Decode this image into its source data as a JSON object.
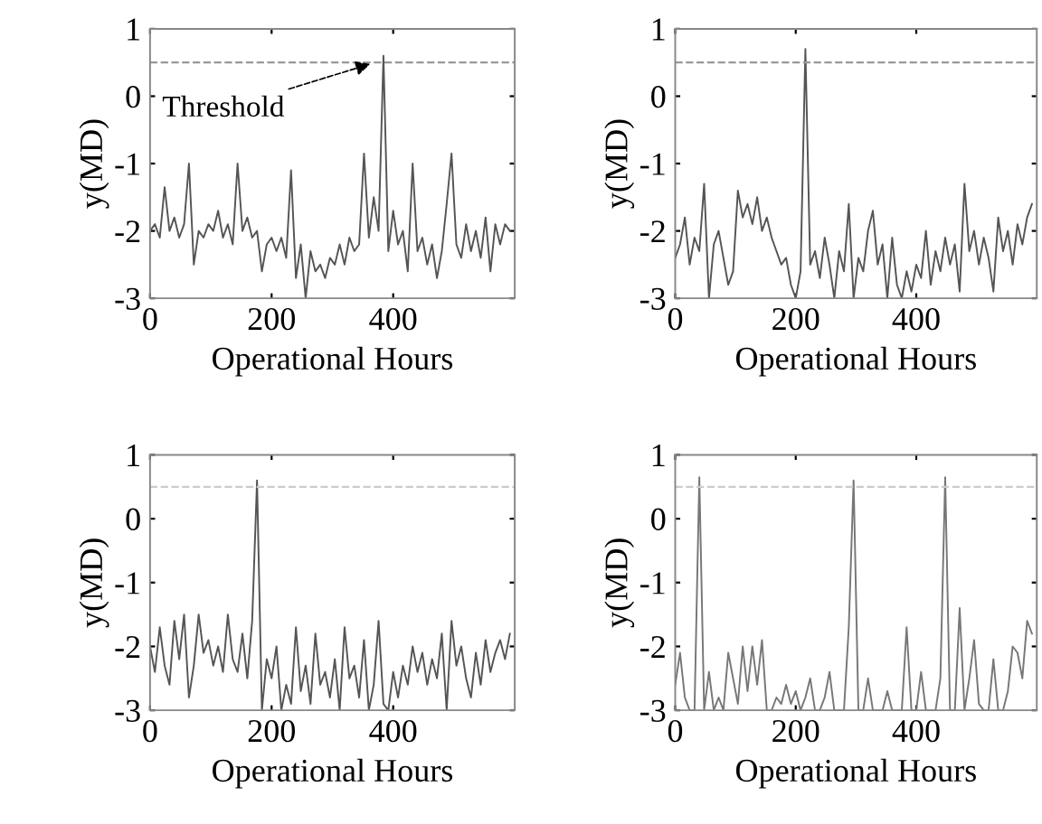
{
  "chart_data": [
    {
      "type": "line",
      "xlabel": "Operational Hours",
      "ylabel": "y(MD)",
      "xlim": [
        0,
        600
      ],
      "xticks": [
        0,
        200,
        400
      ],
      "ylim": [
        -3,
        1
      ],
      "yticks": [
        -3,
        -2,
        -1,
        0,
        1
      ],
      "grid": false,
      "legend": false,
      "marker": "none",
      "line_style": "solid",
      "ref_lines": [
        {
          "axis": "y",
          "value": 0.5,
          "label": null,
          "color": "#999999",
          "line_style": "dashed"
        }
      ],
      "annotations": [
        {
          "text": "Threshold",
          "x": 370,
          "y": 0.5
        }
      ],
      "x": [
        0,
        8,
        16,
        24,
        32,
        40,
        48,
        56,
        64,
        72,
        80,
        88,
        96,
        104,
        112,
        120,
        128,
        136,
        144,
        152,
        160,
        168,
        176,
        184,
        192,
        200,
        208,
        216,
        224,
        232,
        240,
        248,
        256,
        264,
        272,
        280,
        288,
        296,
        304,
        312,
        320,
        328,
        336,
        344,
        352,
        360,
        368,
        376,
        384,
        392,
        400,
        408,
        416,
        424,
        432,
        440,
        448,
        456,
        464,
        472,
        480,
        488,
        496,
        504,
        512,
        520,
        528,
        536,
        544,
        552,
        560,
        568,
        576,
        584,
        592
      ],
      "series": [
        {
          "color": "#555555",
          "values": [
            -2.0,
            -1.9,
            -2.1,
            -1.35,
            -2.0,
            -1.8,
            -2.1,
            -1.9,
            -1.0,
            -2.5,
            -2.0,
            -2.1,
            -1.9,
            -2.0,
            -1.7,
            -2.1,
            -1.9,
            -2.2,
            -1.0,
            -2.0,
            -1.8,
            -2.1,
            -2.0,
            -2.6,
            -2.2,
            -2.1,
            -2.3,
            -2.1,
            -2.4,
            -1.1,
            -2.7,
            -2.2,
            -3.0,
            -2.3,
            -2.6,
            -2.5,
            -2.7,
            -2.4,
            -2.5,
            -2.2,
            -2.5,
            -2.1,
            -2.3,
            -2.2,
            -0.85,
            -2.1,
            -1.5,
            -2.0,
            0.6,
            -2.3,
            -1.7,
            -2.2,
            -2.0,
            -2.6,
            -1.0,
            -2.3,
            -2.1,
            -2.5,
            -2.2,
            -2.7,
            -2.3,
            -1.6,
            -0.85,
            -2.2,
            -2.4,
            -1.9,
            -2.3,
            -2.0,
            -2.4,
            -1.8,
            -2.6,
            -1.9,
            -2.2,
            -1.9,
            -2.0
          ]
        }
      ]
    },
    {
      "type": "line",
      "xlabel": "Operational Hours",
      "ylabel": "y(MD)",
      "xlim": [
        0,
        600
      ],
      "xticks": [
        0,
        200,
        400
      ],
      "ylim": [
        -3,
        1
      ],
      "yticks": [
        -3,
        -2,
        -1,
        0,
        1
      ],
      "grid": false,
      "legend": false,
      "marker": "none",
      "line_style": "solid",
      "ref_lines": [
        {
          "axis": "y",
          "value": 0.5,
          "label": null,
          "color": "#999999",
          "line_style": "dashed"
        }
      ],
      "x": [
        0,
        8,
        16,
        24,
        32,
        40,
        48,
        56,
        64,
        72,
        80,
        88,
        96,
        104,
        112,
        120,
        128,
        136,
        144,
        152,
        160,
        168,
        176,
        184,
        192,
        200,
        208,
        216,
        224,
        232,
        240,
        248,
        256,
        264,
        272,
        280,
        288,
        296,
        304,
        312,
        320,
        328,
        336,
        344,
        352,
        360,
        368,
        376,
        384,
        392,
        400,
        408,
        416,
        424,
        432,
        440,
        448,
        456,
        464,
        472,
        480,
        488,
        496,
        504,
        512,
        520,
        528,
        536,
        544,
        552,
        560,
        568,
        576,
        584,
        592
      ],
      "series": [
        {
          "color": "#555555",
          "values": [
            -2.4,
            -2.2,
            -1.8,
            -2.5,
            -2.1,
            -2.3,
            -1.3,
            -3.0,
            -2.2,
            -2.0,
            -2.4,
            -2.8,
            -2.6,
            -1.4,
            -1.8,
            -1.6,
            -1.9,
            -1.5,
            -2.0,
            -1.8,
            -2.1,
            -2.3,
            -2.5,
            -2.4,
            -2.8,
            -3.0,
            -2.6,
            0.7,
            -2.5,
            -2.3,
            -2.7,
            -2.1,
            -2.5,
            -3.0,
            -2.3,
            -2.6,
            -1.6,
            -3.0,
            -2.4,
            -2.6,
            -2.0,
            -1.7,
            -2.5,
            -2.2,
            -3.0,
            -2.1,
            -2.8,
            -3.0,
            -2.6,
            -2.9,
            -2.5,
            -2.7,
            -2.0,
            -2.8,
            -2.3,
            -2.6,
            -2.1,
            -2.5,
            -2.2,
            -2.9,
            -1.3,
            -2.3,
            -2.0,
            -2.5,
            -2.1,
            -2.4,
            -2.9,
            -1.8,
            -2.3,
            -2.0,
            -2.5,
            -1.9,
            -2.2,
            -1.8,
            -1.6
          ]
        }
      ]
    },
    {
      "type": "line",
      "xlabel": "Operational Hours",
      "ylabel": "y(MD)",
      "xlim": [
        0,
        600
      ],
      "xticks": [
        0,
        200,
        400
      ],
      "ylim": [
        -3,
        1
      ],
      "yticks": [
        -3,
        -2,
        -1,
        0,
        1
      ],
      "grid": false,
      "legend": false,
      "marker": "none",
      "line_style": "solid",
      "ref_lines": [
        {
          "axis": "y",
          "value": 0.5,
          "label": null,
          "color": "#cccccc",
          "line_style": "dashed"
        }
      ],
      "x": [
        0,
        8,
        16,
        24,
        32,
        40,
        48,
        56,
        64,
        72,
        80,
        88,
        96,
        104,
        112,
        120,
        128,
        136,
        144,
        152,
        160,
        168,
        176,
        184,
        192,
        200,
        208,
        216,
        224,
        232,
        240,
        248,
        256,
        264,
        272,
        280,
        288,
        296,
        304,
        312,
        320,
        328,
        336,
        344,
        352,
        360,
        368,
        376,
        384,
        392,
        400,
        408,
        416,
        424,
        432,
        440,
        448,
        456,
        464,
        472,
        480,
        488,
        496,
        504,
        512,
        520,
        528,
        536,
        544,
        552,
        560,
        568,
        576,
        584,
        592
      ],
      "series": [
        {
          "color": "#555555",
          "values": [
            -2.0,
            -2.4,
            -1.7,
            -2.3,
            -2.6,
            -1.6,
            -2.2,
            -1.5,
            -2.8,
            -2.3,
            -1.5,
            -2.1,
            -1.9,
            -2.3,
            -2.0,
            -2.4,
            -1.5,
            -2.2,
            -2.4,
            -1.8,
            -2.5,
            -1.6,
            0.6,
            -3.0,
            -2.2,
            -2.5,
            -2.0,
            -3.0,
            -2.6,
            -2.9,
            -1.7,
            -2.7,
            -2.3,
            -2.9,
            -1.8,
            -2.6,
            -2.4,
            -2.8,
            -2.2,
            -3.0,
            -1.7,
            -2.5,
            -2.3,
            -2.8,
            -1.9,
            -3.0,
            -2.6,
            -1.6,
            -2.9,
            -3.0,
            -2.4,
            -2.8,
            -2.3,
            -2.6,
            -2.0,
            -2.4,
            -2.1,
            -2.6,
            -2.2,
            -2.5,
            -1.8,
            -3.0,
            -1.6,
            -2.3,
            -2.0,
            -2.5,
            -2.8,
            -2.1,
            -2.6,
            -1.9,
            -2.4,
            -2.1,
            -1.9,
            -2.2,
            -1.8
          ]
        }
      ]
    },
    {
      "type": "line",
      "xlabel": "Operational Hours",
      "ylabel": "y(MD)",
      "xlim": [
        0,
        600
      ],
      "xticks": [
        0,
        200,
        400
      ],
      "ylim": [
        -3,
        1
      ],
      "yticks": [
        -3,
        -2,
        -1,
        0,
        1
      ],
      "grid": false,
      "legend": false,
      "marker": "none",
      "line_style": "solid",
      "ref_lines": [
        {
          "axis": "y",
          "value": 0.5,
          "label": null,
          "color": "#cccccc",
          "line_style": "dashed"
        }
      ],
      "x": [
        0,
        8,
        16,
        24,
        32,
        40,
        48,
        56,
        64,
        72,
        80,
        88,
        96,
        104,
        112,
        120,
        128,
        136,
        144,
        152,
        160,
        168,
        176,
        184,
        192,
        200,
        208,
        216,
        224,
        232,
        240,
        248,
        256,
        264,
        272,
        280,
        288,
        296,
        304,
        312,
        320,
        328,
        336,
        344,
        352,
        360,
        368,
        376,
        384,
        392,
        400,
        408,
        416,
        424,
        432,
        440,
        448,
        456,
        464,
        472,
        480,
        488,
        496,
        504,
        512,
        520,
        528,
        536,
        544,
        552,
        560,
        568,
        576,
        584,
        592
      ],
      "series": [
        {
          "color": "#777777",
          "values": [
            -2.6,
            -2.1,
            -2.8,
            -3.0,
            -3.0,
            0.65,
            -3.0,
            -2.4,
            -3.0,
            -2.8,
            -3.0,
            -2.1,
            -2.5,
            -2.9,
            -2.0,
            -2.7,
            -2.0,
            -2.6,
            -1.9,
            -3.0,
            -3.0,
            -2.8,
            -2.9,
            -2.6,
            -2.9,
            -2.7,
            -3.0,
            -2.8,
            -2.5,
            -3.0,
            -3.0,
            -2.8,
            -2.4,
            -3.0,
            -3.0,
            -3.0,
            -1.7,
            0.6,
            -3.0,
            -3.0,
            -2.5,
            -3.0,
            -3.0,
            -3.0,
            -2.7,
            -3.0,
            -3.0,
            -3.0,
            -1.7,
            -3.0,
            -3.0,
            -2.4,
            -3.0,
            -3.0,
            -3.0,
            -2.5,
            0.65,
            -3.0,
            -3.0,
            -1.4,
            -3.0,
            -2.5,
            -1.9,
            -2.9,
            -3.0,
            -3.0,
            -2.2,
            -3.0,
            -3.0,
            -2.7,
            -2.0,
            -2.1,
            -2.5,
            -1.6,
            -1.8
          ]
        }
      ]
    }
  ]
}
